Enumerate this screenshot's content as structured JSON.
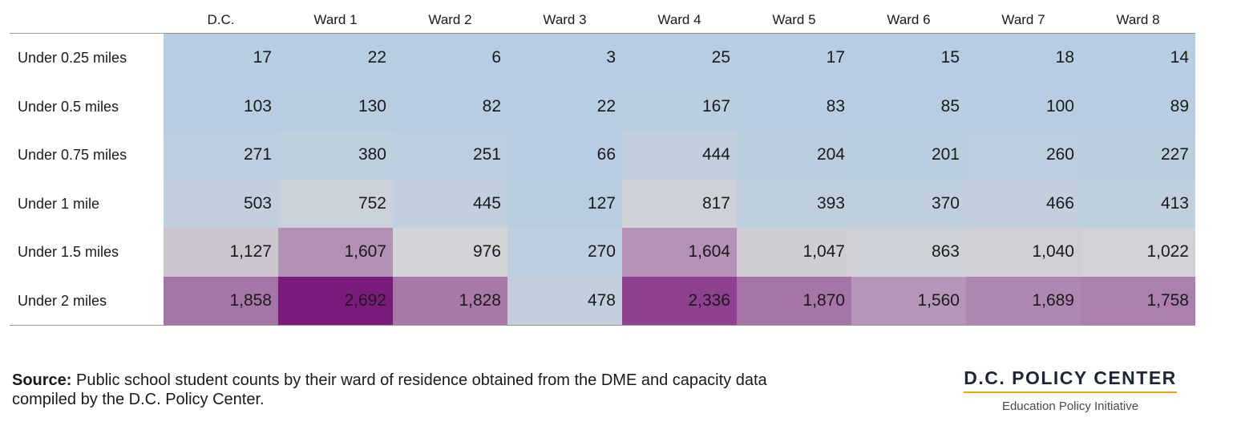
{
  "chart_data": {
    "type": "heatmap",
    "columns": [
      "D.C.",
      "Ward 1",
      "Ward 2",
      "Ward 3",
      "Ward 4",
      "Ward 5",
      "Ward 6",
      "Ward 7",
      "Ward 8"
    ],
    "rows": [
      "Under 0.25 miles",
      "Under 0.5 miles",
      "Under 0.75 miles",
      "Under 1 mile",
      "Under 1.5 miles",
      "Under 2 miles"
    ],
    "values": [
      [
        17,
        22,
        6,
        3,
        25,
        17,
        15,
        18,
        14
      ],
      [
        103,
        130,
        82,
        22,
        167,
        83,
        85,
        100,
        89
      ],
      [
        271,
        380,
        251,
        66,
        444,
        204,
        201,
        260,
        227
      ],
      [
        503,
        752,
        445,
        127,
        817,
        393,
        370,
        466,
        413
      ],
      [
        1127,
        1607,
        976,
        270,
        1604,
        1047,
        863,
        1040,
        1022
      ],
      [
        1858,
        2692,
        1828,
        478,
        2336,
        1870,
        1560,
        1689,
        1758
      ]
    ],
    "labels": [
      [
        "17",
        "22",
        "6",
        "3",
        "25",
        "17",
        "15",
        "18",
        "14"
      ],
      [
        "103",
        "130",
        "82",
        "22",
        "167",
        "83",
        "85",
        "100",
        "89"
      ],
      [
        "271",
        "380",
        "251",
        "66",
        "444",
        "204",
        "201",
        "260",
        "227"
      ],
      [
        "503",
        "752",
        "445",
        "127",
        "817",
        "393",
        "370",
        "466",
        "413"
      ],
      [
        "1,127",
        "1,607",
        "976",
        "270",
        "1,604",
        "1,047",
        "863",
        "1,040",
        "1,022"
      ],
      [
        "1,858",
        "2,692",
        "1,828",
        "478",
        "2,336",
        "1,870",
        "1,560",
        "1,689",
        "1,758"
      ]
    ],
    "color_scale": {
      "low": "#b7cde2",
      "mid": "#d3d3d6",
      "high": "#7b1a7b"
    }
  },
  "source": {
    "label": "Source:",
    "text": "Public school student counts by their ward of residence obtained from the DME  and capacity data compiled by the D.C. Policy Center."
  },
  "brand": {
    "name": "D.C. POLICY CENTER",
    "subtitle": "Education Policy Initiative",
    "accent": "#f0a500"
  }
}
